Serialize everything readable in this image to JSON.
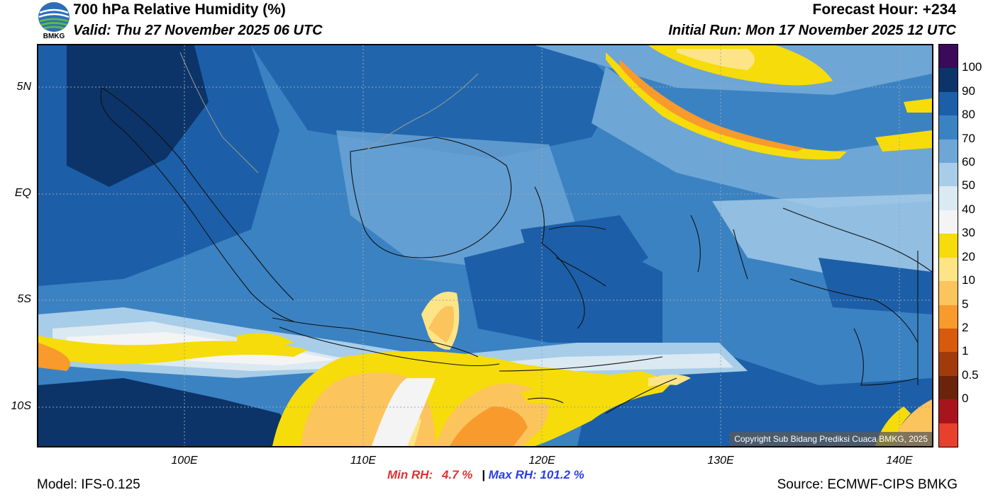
{
  "header": {
    "title": "700 hPa Relative Humidity (%)",
    "valid": "Valid: Thu 27 November 2025 06 UTC",
    "forecast_hour": "Forecast Hour: +234",
    "initial_run": "Initial Run: Mon 17 November 2025 12 UTC"
  },
  "logo": {
    "text": "BMKG",
    "icon": "bmkg-logo-icon"
  },
  "map": {
    "lat_labels": [
      "5N",
      "EQ",
      "5S",
      "10S"
    ],
    "lon_labels": [
      "100E",
      "110E",
      "120E",
      "130E",
      "140E"
    ],
    "copyright": "Copyright Sub Bidang Prediksi Cuaca BMKG, 2025"
  },
  "colorbar": {
    "labels": [
      "100",
      "90",
      "80",
      "70",
      "60",
      "50",
      "40",
      "30",
      "20",
      "10",
      "5",
      "2",
      "1",
      "0.5",
      "0"
    ],
    "colors": [
      "#3b0a58",
      "#0c3468",
      "#1c5fa8",
      "#3b82c2",
      "#6ea6d6",
      "#a8cde8",
      "#dbe9f3",
      "#f4f4f4",
      "#f6dc0a",
      "#fce487",
      "#fcc45c",
      "#f89a2c",
      "#d85a0c",
      "#a33a0c",
      "#6a240c",
      "#a8141c",
      "#e8402c"
    ]
  },
  "stats": {
    "min_label": "Min RH:",
    "min_value": "4.7 %",
    "separator": "|",
    "max_label": "Max RH: 101.2 %"
  },
  "footer": {
    "model": "Model: IFS-0.125",
    "source": "Source: ECMWF-CIPS BMKG"
  }
}
